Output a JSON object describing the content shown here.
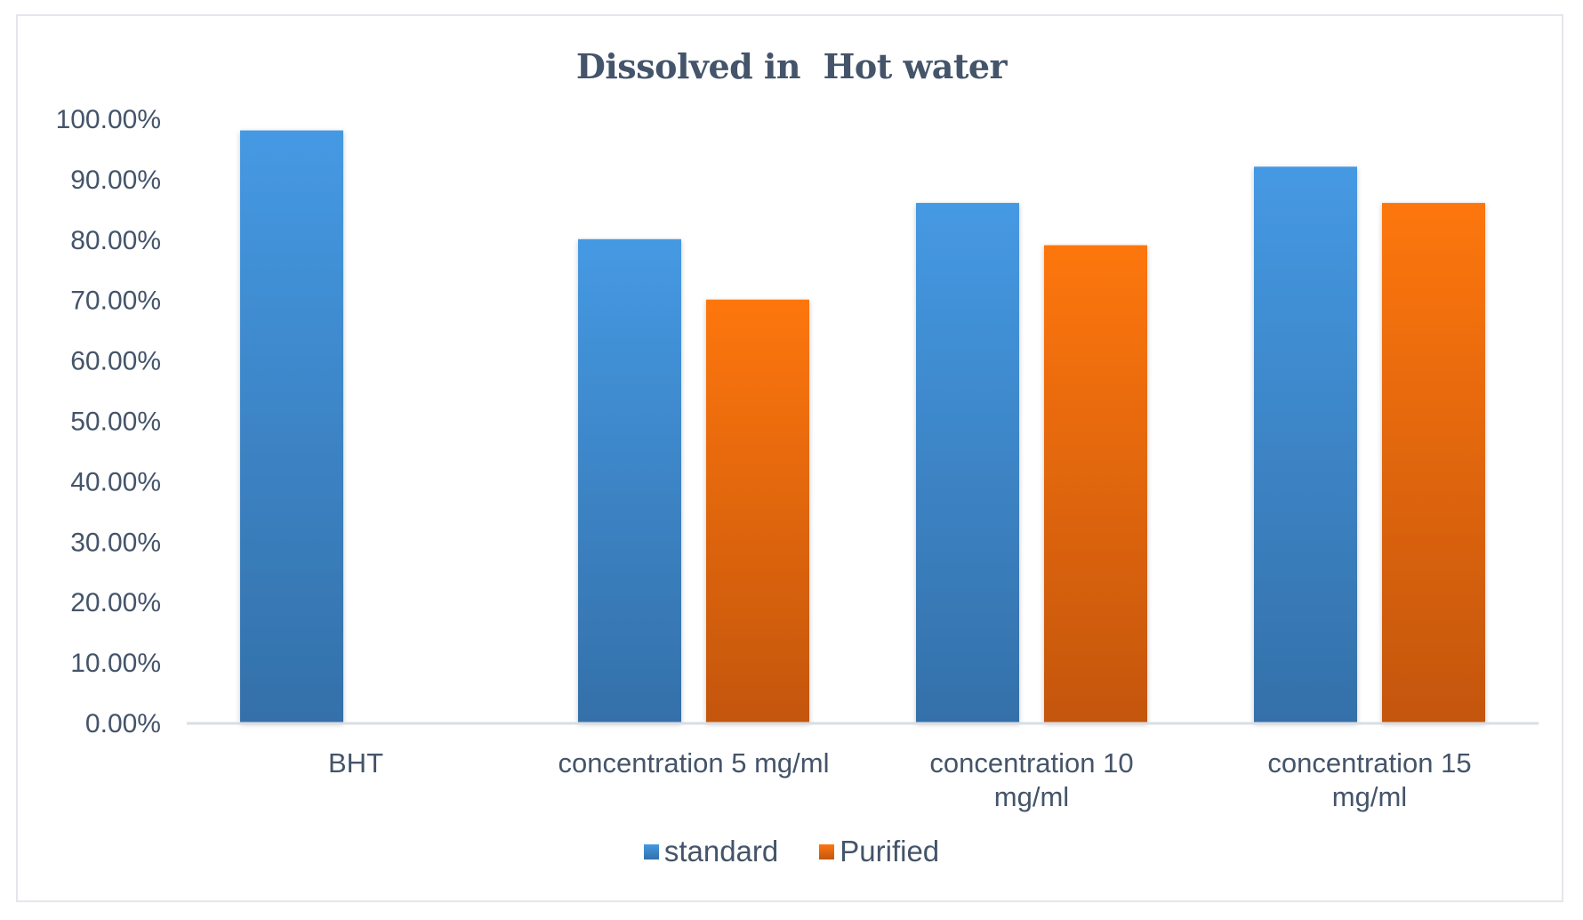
{
  "chart_data": {
    "type": "bar",
    "title": "Dissolved in  Hot water",
    "xlabel": "",
    "ylabel": "",
    "ylim": [
      0,
      1.0
    ],
    "yticks": [
      0,
      0.1,
      0.2,
      0.3,
      0.4,
      0.5,
      0.6,
      0.7,
      0.8,
      0.9,
      1.0
    ],
    "ytick_labels": [
      "0.00%",
      "10.00%",
      "20.00%",
      "30.00%",
      "40.00%",
      "50.00%",
      "60.00%",
      "70.00%",
      "80.00%",
      "90.00%",
      "100.00%"
    ],
    "categories": [
      [
        "BHT"
      ],
      [
        "concentration 5 mg/ml"
      ],
      [
        "concentration 10",
        "mg/ml"
      ],
      [
        "concentration 15",
        "mg/ml"
      ]
    ],
    "series": [
      {
        "name": "standard",
        "color_top": "#4599e3",
        "color_bottom": "#3470a9",
        "values": [
          0.98,
          0.8,
          0.86,
          0.92
        ]
      },
      {
        "name": "Purified",
        "color_top": "#fd7611",
        "color_bottom": "#c4560d",
        "values": [
          null,
          0.7,
          0.79,
          0.86
        ]
      }
    ],
    "grid": false,
    "legend": "bottom"
  }
}
